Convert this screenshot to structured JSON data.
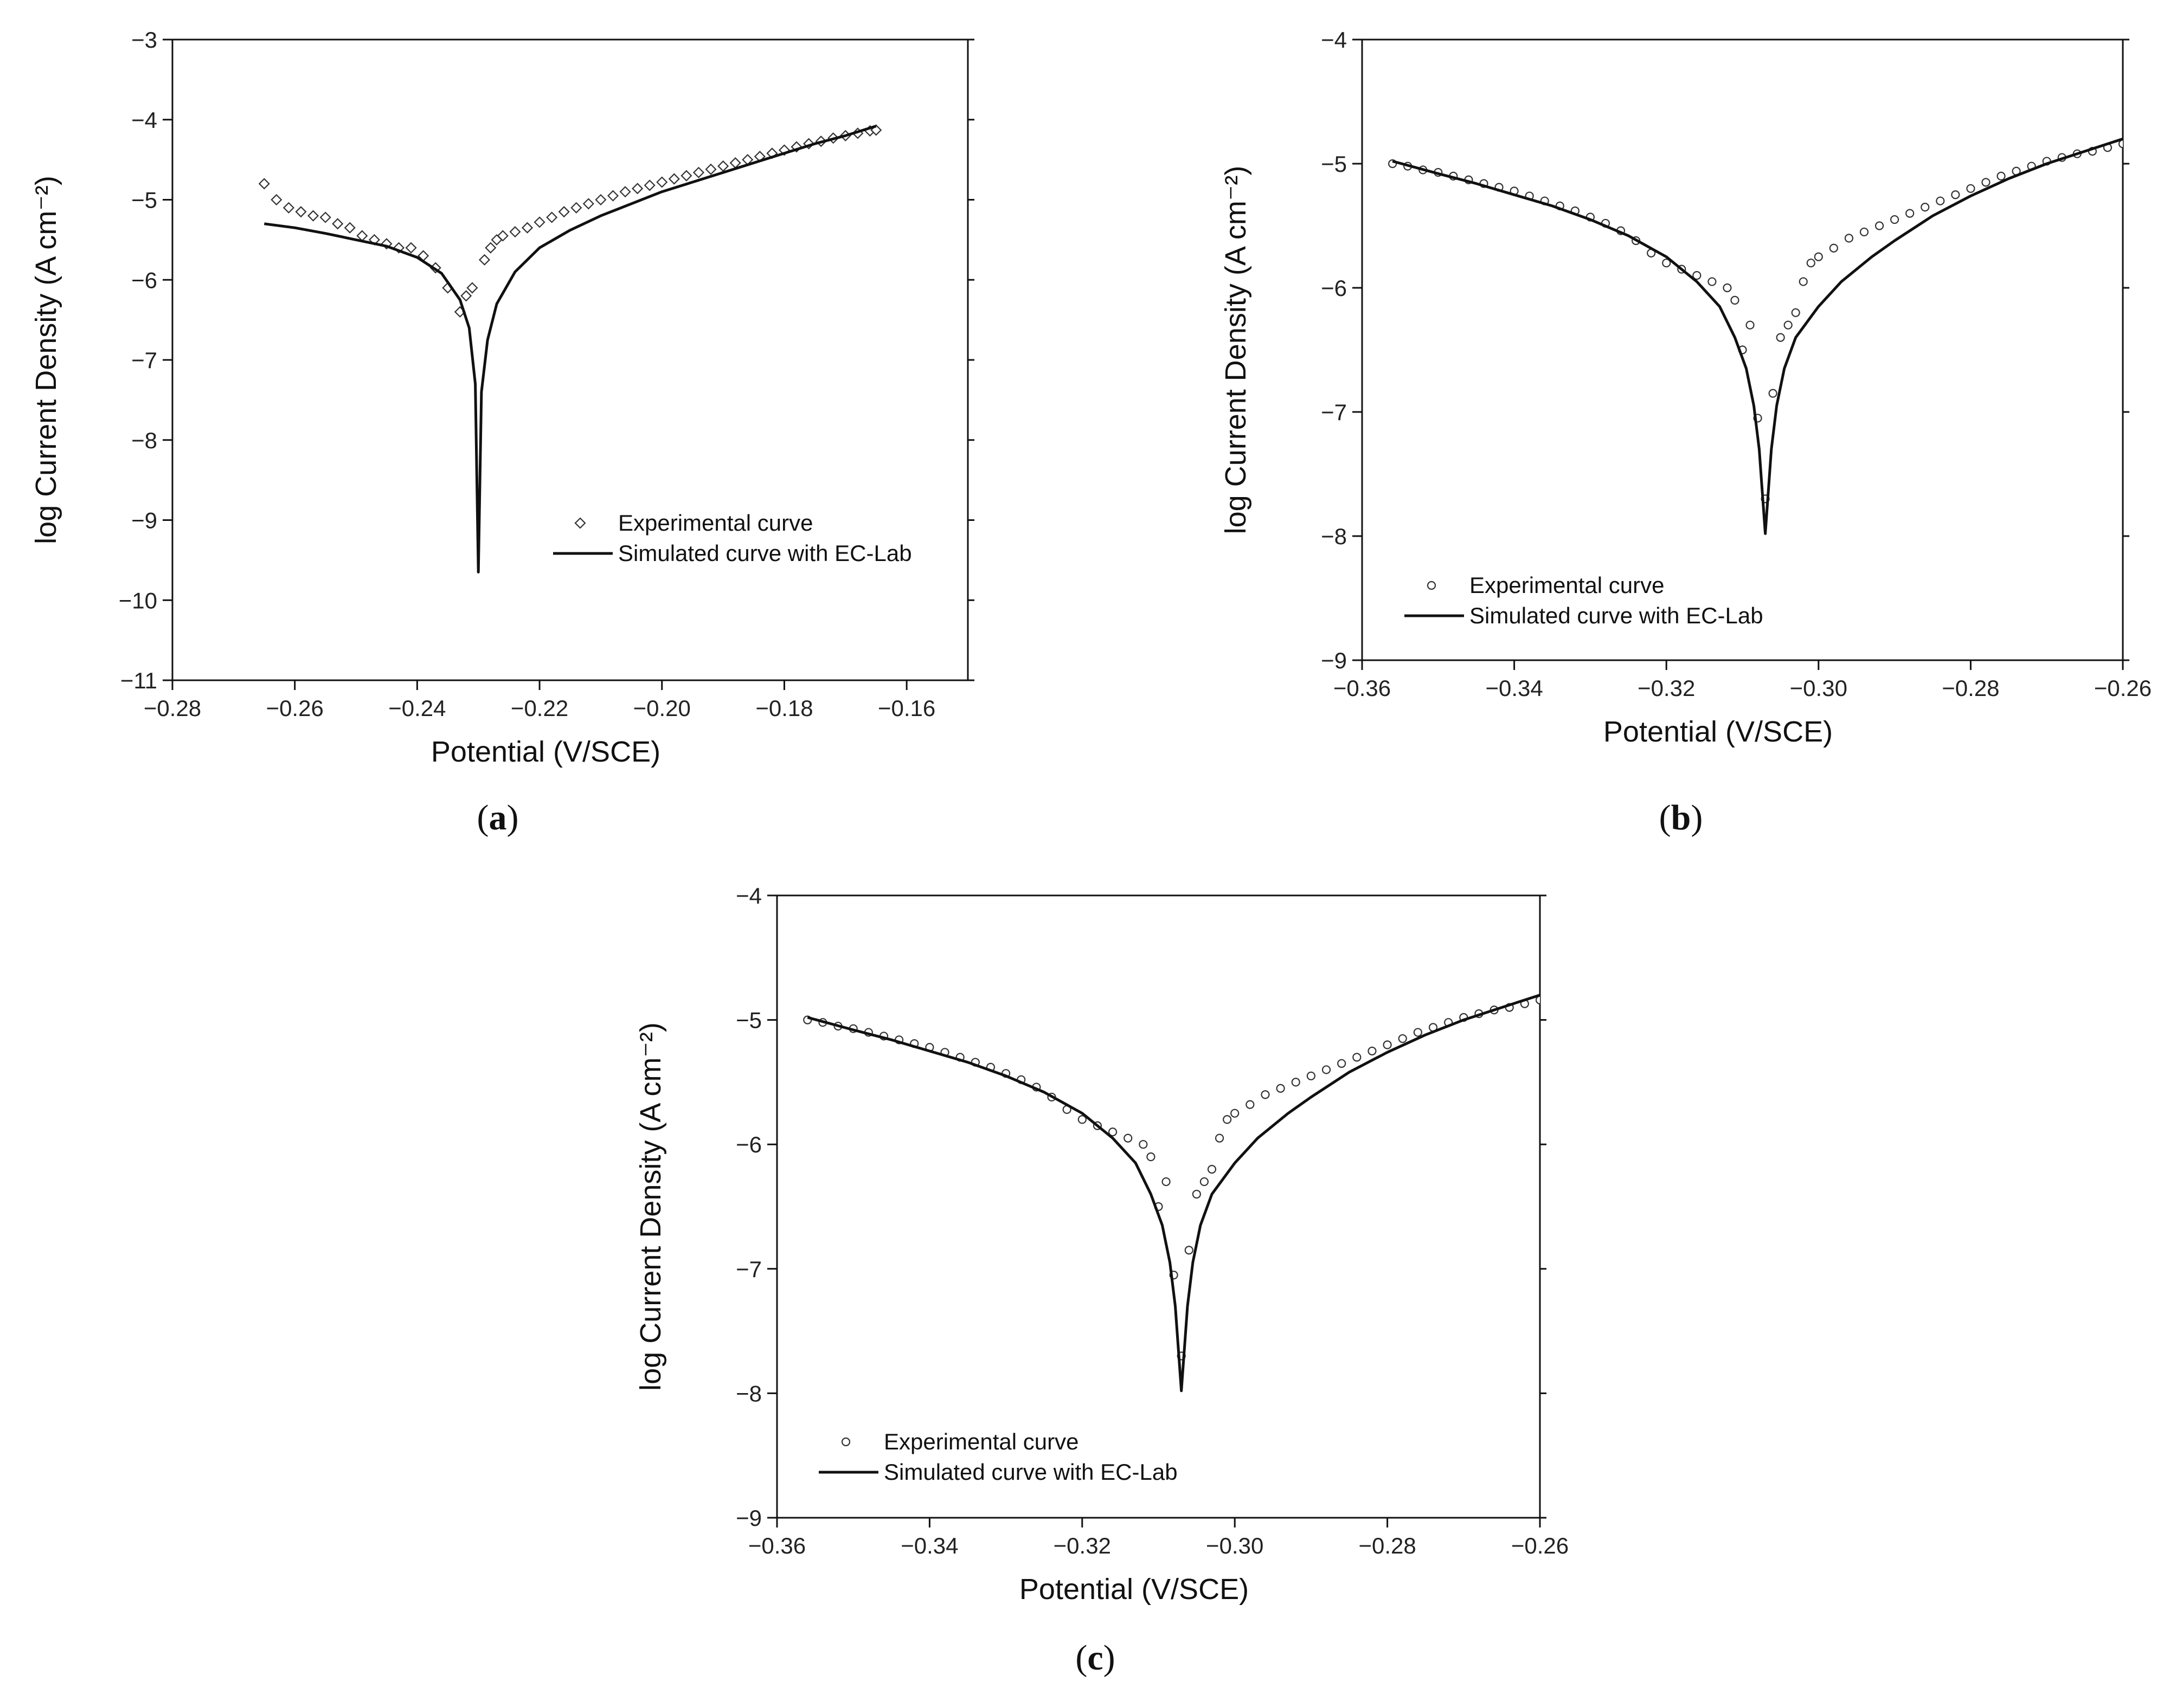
{
  "chart_data": [
    {
      "id": "a",
      "type": "scatter",
      "caption": "a",
      "xlabel": "Potential (V/SCE)",
      "ylabel": "log Current Density (A cm⁻²)",
      "xlim": [
        -0.28,
        -0.15
      ],
      "ylim": [
        -11,
        -3
      ],
      "xticks": [
        -0.28,
        -0.26,
        -0.24,
        -0.22,
        -0.2,
        -0.18,
        -0.16
      ],
      "xtick_labels": [
        "−0.28",
        "−0.26",
        "−0.24",
        "−0.22",
        "−0.20",
        "−0.18",
        "−0.16"
      ],
      "yticks": [
        -11,
        -10,
        -9,
        -8,
        -7,
        -6,
        -5,
        -4,
        -3
      ],
      "ytick_labels": [
        "−11",
        "−10",
        "−9",
        "−8",
        "−7",
        "−6",
        "−5",
        "−4",
        "−3"
      ],
      "ecorr": -0.23,
      "legend_placement": "lower-right",
      "series": [
        {
          "name": "Experimental curve",
          "kind": "scatter",
          "marker": "diamond",
          "x": [
            -0.265,
            -0.263,
            -0.261,
            -0.259,
            -0.257,
            -0.255,
            -0.253,
            -0.251,
            -0.249,
            -0.247,
            -0.245,
            -0.243,
            -0.241,
            -0.239,
            -0.237,
            -0.235,
            -0.233,
            -0.232,
            -0.231,
            -0.229,
            -0.228,
            -0.227,
            -0.226,
            -0.224,
            -0.222,
            -0.22,
            -0.218,
            -0.216,
            -0.214,
            -0.212,
            -0.21,
            -0.208,
            -0.206,
            -0.204,
            -0.202,
            -0.2,
            -0.198,
            -0.196,
            -0.194,
            -0.192,
            -0.19,
            -0.188,
            -0.186,
            -0.184,
            -0.182,
            -0.18,
            -0.178,
            -0.176,
            -0.174,
            -0.172,
            -0.17,
            -0.168,
            -0.166,
            -0.165
          ],
          "y": [
            -4.8,
            -5.0,
            -5.1,
            -5.15,
            -5.2,
            -5.22,
            -5.3,
            -5.35,
            -5.45,
            -5.5,
            -5.55,
            -5.6,
            -5.6,
            -5.7,
            -5.85,
            -6.1,
            -6.4,
            -6.2,
            -6.1,
            -5.75,
            -5.6,
            -5.5,
            -5.45,
            -5.4,
            -5.35,
            -5.28,
            -5.22,
            -5.15,
            -5.1,
            -5.05,
            -5.0,
            -4.95,
            -4.9,
            -4.86,
            -4.82,
            -4.78,
            -4.74,
            -4.7,
            -4.66,
            -4.62,
            -4.58,
            -4.54,
            -4.5,
            -4.46,
            -4.42,
            -4.38,
            -4.34,
            -4.3,
            -4.27,
            -4.23,
            -4.2,
            -4.17,
            -4.14,
            -4.13
          ]
        },
        {
          "name": "Simulated curve with EC-Lab",
          "kind": "line",
          "x": [
            -0.265,
            -0.26,
            -0.255,
            -0.25,
            -0.245,
            -0.24,
            -0.236,
            -0.233,
            -0.2315,
            -0.2305,
            -0.23,
            -0.2295,
            -0.2285,
            -0.227,
            -0.224,
            -0.22,
            -0.215,
            -0.21,
            -0.205,
            -0.2,
            -0.195,
            -0.19,
            -0.185,
            -0.18,
            -0.175,
            -0.17,
            -0.165
          ],
          "y": [
            -5.3,
            -5.35,
            -5.42,
            -5.5,
            -5.58,
            -5.72,
            -5.92,
            -6.25,
            -6.6,
            -7.3,
            -9.65,
            -7.4,
            -6.75,
            -6.3,
            -5.9,
            -5.6,
            -5.38,
            -5.2,
            -5.05,
            -4.9,
            -4.78,
            -4.66,
            -4.54,
            -4.42,
            -4.3,
            -4.2,
            -4.08
          ]
        }
      ]
    },
    {
      "id": "b",
      "type": "scatter",
      "caption": "b",
      "xlabel": "Potential (V/SCE)",
      "ylabel": "log Current Density (A cm⁻²)",
      "xlim": [
        -0.36,
        -0.26
      ],
      "ylim": [
        -9,
        -4
      ],
      "xticks": [
        -0.36,
        -0.34,
        -0.32,
        -0.3,
        -0.28,
        -0.26
      ],
      "xtick_labels": [
        "−0.36",
        "−0.34",
        "−0.32",
        "−0.30",
        "−0.28",
        "−0.26"
      ],
      "yticks": [
        -9,
        -8,
        -7,
        -6,
        -5,
        -4
      ],
      "ytick_labels": [
        "−9",
        "−8",
        "−7",
        "−6",
        "−5",
        "−4"
      ],
      "ecorr": -0.307,
      "legend_placement": "lower-left",
      "series": [
        {
          "name": "Experimental curve",
          "kind": "scatter",
          "marker": "circle",
          "x": [
            -0.356,
            -0.354,
            -0.352,
            -0.35,
            -0.348,
            -0.346,
            -0.344,
            -0.342,
            -0.34,
            -0.338,
            -0.336,
            -0.334,
            -0.332,
            -0.33,
            -0.328,
            -0.326,
            -0.324,
            -0.322,
            -0.32,
            -0.318,
            -0.316,
            -0.314,
            -0.312,
            -0.311,
            -0.31,
            -0.309,
            -0.308,
            -0.307,
            -0.306,
            -0.305,
            -0.304,
            -0.303,
            -0.302,
            -0.301,
            -0.3,
            -0.298,
            -0.296,
            -0.294,
            -0.292,
            -0.29,
            -0.288,
            -0.286,
            -0.284,
            -0.282,
            -0.28,
            -0.278,
            -0.276,
            -0.274,
            -0.272,
            -0.27,
            -0.268,
            -0.266,
            -0.264,
            -0.262,
            -0.26
          ],
          "y": [
            -5.0,
            -5.02,
            -5.05,
            -5.07,
            -5.1,
            -5.13,
            -5.16,
            -5.19,
            -5.22,
            -5.26,
            -5.3,
            -5.34,
            -5.38,
            -5.43,
            -5.48,
            -5.54,
            -5.62,
            -5.72,
            -5.8,
            -5.85,
            -5.9,
            -5.95,
            -6.0,
            -6.1,
            -6.5,
            -6.3,
            -7.05,
            -7.7,
            -6.85,
            -6.4,
            -6.3,
            -6.2,
            -5.95,
            -5.8,
            -5.75,
            -5.68,
            -5.6,
            -5.55,
            -5.5,
            -5.45,
            -5.4,
            -5.35,
            -5.3,
            -5.25,
            -5.2,
            -5.15,
            -5.1,
            -5.06,
            -5.02,
            -4.98,
            -4.95,
            -4.92,
            -4.9,
            -4.87,
            -4.84
          ]
        },
        {
          "name": "Simulated curve with EC-Lab",
          "kind": "line",
          "x": [
            -0.356,
            -0.35,
            -0.345,
            -0.34,
            -0.335,
            -0.33,
            -0.325,
            -0.32,
            -0.316,
            -0.313,
            -0.311,
            -0.3095,
            -0.3085,
            -0.3078,
            -0.307,
            -0.3062,
            -0.3055,
            -0.3045,
            -0.303,
            -0.3,
            -0.297,
            -0.293,
            -0.29,
            -0.285,
            -0.28,
            -0.275,
            -0.27,
            -0.265,
            -0.26
          ],
          "y": [
            -4.98,
            -5.08,
            -5.16,
            -5.25,
            -5.34,
            -5.45,
            -5.58,
            -5.75,
            -5.95,
            -6.15,
            -6.4,
            -6.65,
            -6.95,
            -7.3,
            -7.98,
            -7.3,
            -6.95,
            -6.65,
            -6.4,
            -6.15,
            -5.95,
            -5.75,
            -5.62,
            -5.42,
            -5.26,
            -5.12,
            -5.0,
            -4.9,
            -4.8
          ]
        }
      ]
    },
    {
      "id": "c",
      "type": "scatter",
      "caption": "c",
      "xlabel": "Potential (V/SCE)",
      "ylabel": "log Current Density (A cm⁻²)",
      "xlim": [
        -0.36,
        -0.26
      ],
      "ylim": [
        -9,
        -4
      ],
      "xticks": [
        -0.36,
        -0.34,
        -0.32,
        -0.3,
        -0.28,
        -0.26
      ],
      "xtick_labels": [
        "−0.36",
        "−0.34",
        "−0.32",
        "−0.30",
        "−0.28",
        "−0.26"
      ],
      "yticks": [
        -9,
        -8,
        -7,
        -6,
        -5,
        -4
      ],
      "ytick_labels": [
        "−9",
        "−8",
        "−7",
        "−6",
        "−5",
        "−4"
      ],
      "ecorr": -0.307,
      "legend_placement": "lower-left",
      "series": [
        {
          "name": "Experimental curve",
          "kind": "scatter",
          "marker": "circle",
          "x": [
            -0.356,
            -0.354,
            -0.352,
            -0.35,
            -0.348,
            -0.346,
            -0.344,
            -0.342,
            -0.34,
            -0.338,
            -0.336,
            -0.334,
            -0.332,
            -0.33,
            -0.328,
            -0.326,
            -0.324,
            -0.322,
            -0.32,
            -0.318,
            -0.316,
            -0.314,
            -0.312,
            -0.311,
            -0.31,
            -0.309,
            -0.308,
            -0.307,
            -0.306,
            -0.305,
            -0.304,
            -0.303,
            -0.302,
            -0.301,
            -0.3,
            -0.298,
            -0.296,
            -0.294,
            -0.292,
            -0.29,
            -0.288,
            -0.286,
            -0.284,
            -0.282,
            -0.28,
            -0.278,
            -0.276,
            -0.274,
            -0.272,
            -0.27,
            -0.268,
            -0.266,
            -0.264,
            -0.262,
            -0.26
          ],
          "y": [
            -5.0,
            -5.02,
            -5.05,
            -5.07,
            -5.1,
            -5.13,
            -5.16,
            -5.19,
            -5.22,
            -5.26,
            -5.3,
            -5.34,
            -5.38,
            -5.43,
            -5.48,
            -5.54,
            -5.62,
            -5.72,
            -5.8,
            -5.85,
            -5.9,
            -5.95,
            -6.0,
            -6.1,
            -6.5,
            -6.3,
            -7.05,
            -7.7,
            -6.85,
            -6.4,
            -6.3,
            -6.2,
            -5.95,
            -5.8,
            -5.75,
            -5.68,
            -5.6,
            -5.55,
            -5.5,
            -5.45,
            -5.4,
            -5.35,
            -5.3,
            -5.25,
            -5.2,
            -5.15,
            -5.1,
            -5.06,
            -5.02,
            -4.98,
            -4.95,
            -4.92,
            -4.9,
            -4.87,
            -4.84
          ]
        },
        {
          "name": "Simulated curve with EC-Lab",
          "kind": "line",
          "x": [
            -0.356,
            -0.35,
            -0.345,
            -0.34,
            -0.335,
            -0.33,
            -0.325,
            -0.32,
            -0.316,
            -0.313,
            -0.311,
            -0.3095,
            -0.3085,
            -0.3078,
            -0.307,
            -0.3062,
            -0.3055,
            -0.3045,
            -0.303,
            -0.3,
            -0.297,
            -0.293,
            -0.29,
            -0.285,
            -0.28,
            -0.275,
            -0.27,
            -0.265,
            -0.26
          ],
          "y": [
            -4.98,
            -5.08,
            -5.16,
            -5.25,
            -5.34,
            -5.45,
            -5.58,
            -5.75,
            -5.95,
            -6.15,
            -6.4,
            -6.65,
            -6.95,
            -7.3,
            -7.98,
            -7.3,
            -6.95,
            -6.65,
            -6.4,
            -6.15,
            -5.95,
            -5.75,
            -5.62,
            -5.42,
            -5.26,
            -5.12,
            -5.0,
            -4.9,
            -4.8
          ]
        }
      ]
    }
  ]
}
